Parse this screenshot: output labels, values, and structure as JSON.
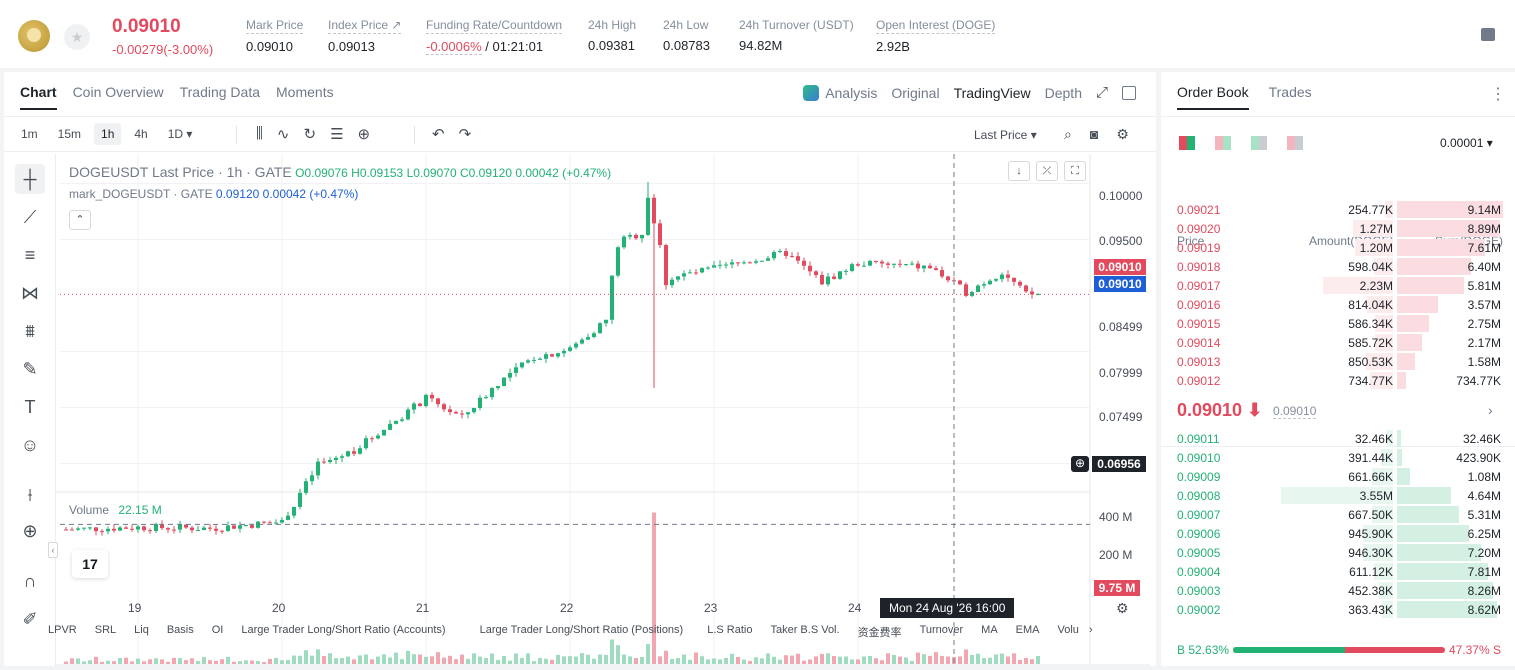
{
  "header": {
    "last_price": "0.09010",
    "price_change": "-0.00279(-3.00%)",
    "stats": [
      {
        "label": "Mark Price",
        "value": "0.09010"
      },
      {
        "label": "Index Price ↗",
        "value": "0.09013"
      },
      {
        "label": "Funding Rate/Countdown",
        "value_red": "-0.0006%",
        "value": " / 01:21:01"
      },
      {
        "label": "24h High",
        "value": "0.09381"
      },
      {
        "label": "24h Low",
        "value": "0.08783"
      },
      {
        "label": "24h Turnover (USDT)",
        "value": "94.82M"
      },
      {
        "label": "Open Interest (DOGE)",
        "value": "2.92B"
      }
    ]
  },
  "chart_panel": {
    "tabs": [
      "Chart",
      "Coin Overview",
      "Trading Data",
      "Moments"
    ],
    "views": [
      "Analysis",
      "Original",
      "TradingView",
      "Depth"
    ],
    "intervals": [
      "1m",
      "15m",
      "1h",
      "4h",
      "1D ▾"
    ],
    "price_source": "Last Price ▾",
    "legend_title": "DOGEUSDT Last Price · 1h · GATE",
    "legend_o": "O0.09076",
    "legend_h": "H0.09153",
    "legend_l": "L0.09070",
    "legend_c": "C0.09120",
    "legend_chg": "0.00042 (+0.47%)",
    "mark_label": "mark_DOGEUSDT · GATE",
    "mark_value": "0.09120",
    "mark_chg": "0.00042 (+0.47%)",
    "volume_label": "Volume",
    "volume_value": "22.15 M",
    "y_labels": [
      "0.10000",
      "0.09500",
      "0.08499",
      "0.07999",
      "0.07499"
    ],
    "tag_last": "0.09010",
    "tag_mark": "0.09010",
    "tag_cross": "0.06956",
    "vol_labels": [
      "400 M",
      "200 M"
    ],
    "vol_tag": "9.75 M",
    "x_labels": [
      "19",
      "20",
      "21",
      "22",
      "23",
      "24"
    ],
    "crosshair_time": "Mon 24 Aug '26   16:00",
    "indicators": [
      "LPVR",
      "SRL",
      "Liq",
      "Basis",
      "OI",
      "Large Trader Long/Short Ratio (Accounts)",
      "Large Trader Long/Short Ratio (Positions)",
      "L.S Ratio",
      "Taker B.S Vol.",
      "资金费率",
      "Turnover",
      "MA",
      "EMA",
      "Volu"
    ]
  },
  "order_book": {
    "tabs": [
      "Order Book",
      "Trades"
    ],
    "precision": "0.00001 ▾",
    "headers": {
      "price": "Price",
      "amount": "Amount(DOGE)",
      "sum": "Sum(DOGE)"
    },
    "asks": [
      {
        "price": "0.09021",
        "amount": "254.77K",
        "sum": "9.14M"
      },
      {
        "price": "0.09020",
        "amount": "1.27M",
        "sum": "8.89M"
      },
      {
        "price": "0.09019",
        "amount": "1.20M",
        "sum": "7.61M"
      },
      {
        "price": "0.09018",
        "amount": "598.04K",
        "sum": "6.40M"
      },
      {
        "price": "0.09017",
        "amount": "2.23M",
        "sum": "5.81M"
      },
      {
        "price": "0.09016",
        "amount": "814.04K",
        "sum": "3.57M"
      },
      {
        "price": "0.09015",
        "amount": "586.34K",
        "sum": "2.75M"
      },
      {
        "price": "0.09014",
        "amount": "585.72K",
        "sum": "2.17M"
      },
      {
        "price": "0.09013",
        "amount": "850.53K",
        "sum": "1.58M"
      },
      {
        "price": "0.09012",
        "amount": "734.77K",
        "sum": "734.77K"
      }
    ],
    "mid_price": "0.09010 ⬇",
    "mid_mark": "0.09010",
    "bids": [
      {
        "price": "0.09011",
        "amount": "32.46K",
        "sum": "32.46K"
      },
      {
        "price": "0.09010",
        "amount": "391.44K",
        "sum": "423.90K"
      },
      {
        "price": "0.09009",
        "amount": "661.66K",
        "sum": "1.08M"
      },
      {
        "price": "0.09008",
        "amount": "3.55M",
        "sum": "4.64M"
      },
      {
        "price": "0.09007",
        "amount": "667.50K",
        "sum": "5.31M"
      },
      {
        "price": "0.09006",
        "amount": "945.90K",
        "sum": "6.25M"
      },
      {
        "price": "0.09005",
        "amount": "946.30K",
        "sum": "7.20M"
      },
      {
        "price": "0.09004",
        "amount": "611.12K",
        "sum": "7.81M"
      },
      {
        "price": "0.09003",
        "amount": "452.38K",
        "sum": "8.26M"
      },
      {
        "price": "0.09002",
        "amount": "363.43K",
        "sum": "8.62M"
      }
    ],
    "buy_ratio": "B 52.63%",
    "sell_ratio": "47.37% S",
    "buy_fraction": 0.5263
  },
  "colors": {
    "up": "#23b275",
    "down": "#e24a5e",
    "mark": "#1f5fd6"
  },
  "chart_data": {
    "type": "candlestick",
    "ylim": [
      0.067,
      0.1005
    ],
    "y_ticks": [
      0.07499,
      0.07999,
      0.08499,
      0.095,
      0.1
    ],
    "x_ticks": [
      "19",
      "20",
      "21",
      "22",
      "23",
      "24"
    ],
    "close_path": [
      [
        "18 12:00",
        0.0691
      ],
      [
        "19 00:00",
        0.0693
      ],
      [
        "19 12:00",
        0.0692
      ],
      [
        "20 00:00",
        0.0698
      ],
      [
        "20 06:00",
        0.0748
      ],
      [
        "20 12:00",
        0.0762
      ],
      [
        "21 00:00",
        0.0808
      ],
      [
        "21 06:00",
        0.0791
      ],
      [
        "21 12:00",
        0.0822
      ],
      [
        "21 18:00",
        0.0845
      ],
      [
        "22 00:00",
        0.0852
      ],
      [
        "22 06:00",
        0.0878
      ],
      [
        "22 08:00",
        0.0948
      ],
      [
        "22 12:00",
        0.0956
      ],
      [
        "22 13:00",
        0.0992
      ],
      [
        "22 16:00",
        0.0915
      ],
      [
        "23 00:00",
        0.0924
      ],
      [
        "23 12:00",
        0.0938
      ],
      [
        "23 18:00",
        0.0912
      ],
      [
        "24 00:00",
        0.0929
      ],
      [
        "24 12:00",
        0.0925
      ],
      [
        "24 18:00",
        0.0903
      ],
      [
        "25 00:00",
        0.0921
      ],
      [
        "25 04:00",
        0.0901
      ],
      [
        "25 06:00",
        0.0901
      ]
    ],
    "extremes": {
      "high": 0.10015,
      "low_wick": 0.08175
    },
    "volume_ylim": [
      0,
      460
    ],
    "volume_unit": "M",
    "volume_peak": 410
  }
}
